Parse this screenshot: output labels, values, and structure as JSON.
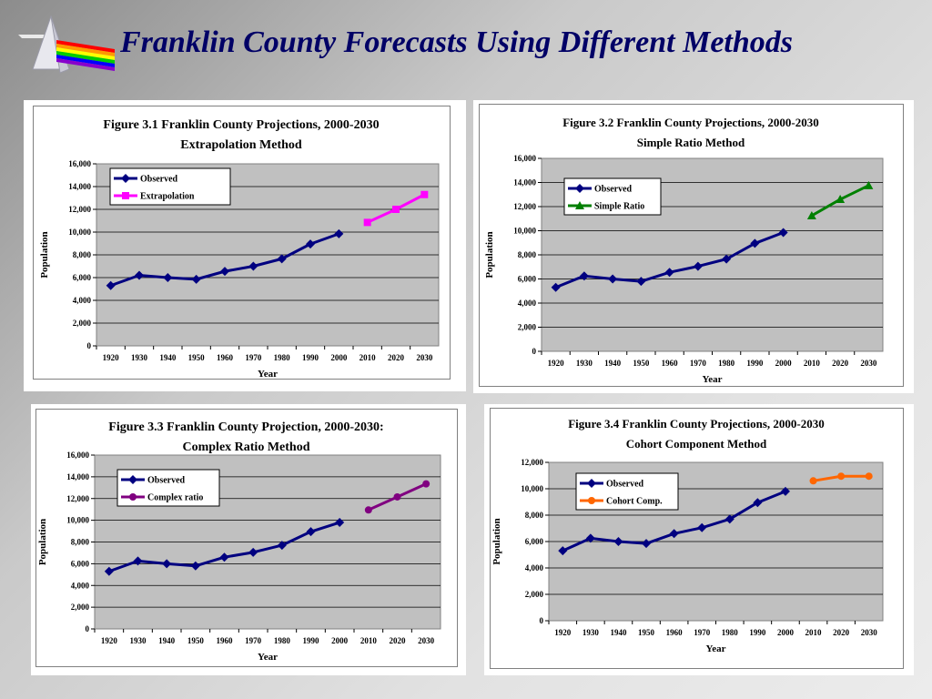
{
  "slide": {
    "title": "Franklin County Forecasts Using Different Methods",
    "colors": {
      "title": "#000066",
      "observed": "#000080",
      "plot_bg": "#c0c0c0"
    }
  },
  "chart_data": [
    {
      "type": "line",
      "title": "Figure 3.1 Franklin County Projections, 2000-2030",
      "subtitle": "Extrapolation Method",
      "xlabel": "Year",
      "ylabel": "Population",
      "x_ticks": [
        "1920",
        "1930",
        "1940",
        "1950",
        "1960",
        "1970",
        "1980",
        "1990",
        "2000",
        "2010",
        "2020",
        "2030"
      ],
      "y_ticks": [
        "0",
        "2,000",
        "4,000",
        "6,000",
        "8,000",
        "10,000",
        "12,000",
        "14,000",
        "16,000"
      ],
      "ylim": [
        0,
        16000
      ],
      "grid": true,
      "legend_position": "top-left",
      "series": [
        {
          "name": "Observed",
          "color": "#000080",
          "marker": "diamond",
          "x": [
            1920,
            1930,
            1940,
            1950,
            1960,
            1970,
            1980,
            1990,
            2000
          ],
          "values": [
            5300,
            6200,
            6000,
            5850,
            6550,
            7000,
            7650,
            8950,
            9850
          ]
        },
        {
          "name": "Extrapolation",
          "color": "#ff00ff",
          "marker": "square",
          "x": [
            2010,
            2020,
            2030
          ],
          "values": [
            10850,
            12000,
            13300
          ]
        }
      ]
    },
    {
      "type": "line",
      "title": "Figure 3.2 Franklin County Projections, 2000-2030",
      "subtitle": "Simple Ratio Method",
      "xlabel": "Year",
      "ylabel": "Population",
      "x_ticks": [
        "1920",
        "1930",
        "1940",
        "1950",
        "1960",
        "1970",
        "1980",
        "1990",
        "2000",
        "2010",
        "2020",
        "2030"
      ],
      "y_ticks": [
        "0",
        "2,000",
        "4,000",
        "6,000",
        "8,000",
        "10,000",
        "12,000",
        "14,000",
        "16,000"
      ],
      "ylim": [
        0,
        16000
      ],
      "grid": true,
      "legend_position": "top-left",
      "series": [
        {
          "name": "Observed",
          "color": "#000080",
          "marker": "diamond",
          "x": [
            1920,
            1930,
            1940,
            1950,
            1960,
            1970,
            1980,
            1990,
            2000
          ],
          "values": [
            5300,
            6250,
            6000,
            5800,
            6550,
            7050,
            7650,
            8950,
            9850
          ]
        },
        {
          "name": "Simple Ratio",
          "color": "#008000",
          "marker": "triangle",
          "x": [
            2010,
            2020,
            2030
          ],
          "values": [
            11250,
            12600,
            13750
          ]
        }
      ]
    },
    {
      "type": "line",
      "title": "Figure 3.3 Franklin County Projection, 2000-2030:",
      "subtitle": "Complex Ratio Method",
      "xlabel": "Year",
      "ylabel": "Population",
      "x_ticks": [
        "1920",
        "1930",
        "1940",
        "1950",
        "1960",
        "1970",
        "1980",
        "1990",
        "2000",
        "2010",
        "2020",
        "2030"
      ],
      "y_ticks": [
        "0",
        "2,000",
        "4,000",
        "6,000",
        "8,000",
        "10,000",
        "12,000",
        "14,000",
        "16,000"
      ],
      "ylim": [
        0,
        16000
      ],
      "grid": true,
      "legend_position": "top-left",
      "series": [
        {
          "name": "Observed",
          "color": "#000080",
          "marker": "diamond",
          "x": [
            1920,
            1930,
            1940,
            1950,
            1960,
            1970,
            1980,
            1990,
            2000
          ],
          "values": [
            5300,
            6250,
            6000,
            5800,
            6600,
            7050,
            7700,
            8950,
            9800
          ]
        },
        {
          "name": "Complex ratio",
          "color": "#800080",
          "marker": "circle",
          "x": [
            2010,
            2020,
            2030
          ],
          "values": [
            10950,
            12150,
            13350
          ]
        }
      ]
    },
    {
      "type": "line",
      "title": "Figure 3.4 Franklin County Projections, 2000-2030",
      "subtitle": "Cohort Component Method",
      "xlabel": "Year",
      "ylabel": "Population",
      "x_ticks": [
        "1920",
        "1930",
        "1940",
        "1950",
        "1960",
        "1970",
        "1980",
        "1990",
        "2000",
        "2010",
        "2020",
        "2030"
      ],
      "y_ticks": [
        "0",
        "2,000",
        "4,000",
        "6,000",
        "8,000",
        "10,000",
        "12,000"
      ],
      "ylim": [
        0,
        12000
      ],
      "grid": true,
      "legend_position": "top-left",
      "series": [
        {
          "name": "Observed",
          "color": "#000080",
          "marker": "diamond",
          "x": [
            1920,
            1930,
            1940,
            1950,
            1960,
            1970,
            1980,
            1990,
            2000
          ],
          "values": [
            5300,
            6250,
            6000,
            5850,
            6600,
            7050,
            7700,
            8950,
            9800
          ]
        },
        {
          "name": "Cohort Comp.",
          "color": "#ff6600",
          "marker": "circle",
          "x": [
            2010,
            2020,
            2030
          ],
          "values": [
            10600,
            10950,
            10950
          ]
        }
      ]
    }
  ]
}
